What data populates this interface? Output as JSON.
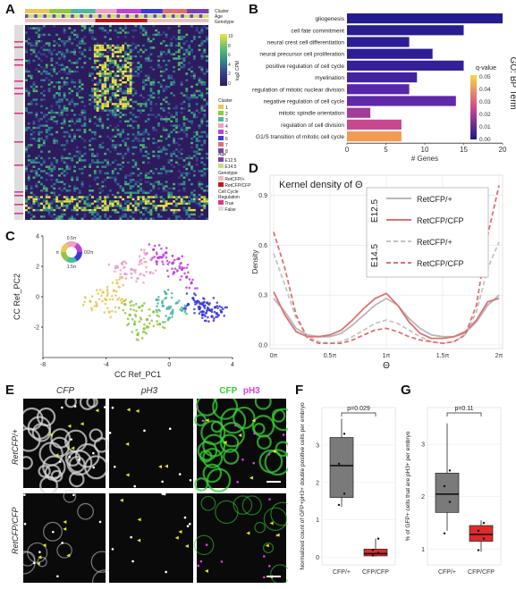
{
  "panels": {
    "A": "A",
    "B": "B",
    "C": "C",
    "D": "D",
    "E": "E",
    "F": "F",
    "G": "G"
  },
  "panel_a": {
    "top_legends": [
      "Cluster",
      "Age",
      "Genotype"
    ],
    "colorbar_title": "log2 CPM",
    "colorbar_ticks": [
      "10",
      "8",
      "6",
      "4",
      "2",
      "0"
    ],
    "cluster_legend_title": "Cluster",
    "cluster_items": [
      "1",
      "2",
      "3",
      "4",
      "5",
      "6",
      "7",
      "8"
    ],
    "age_legend_title": "Age",
    "age_items": [
      "E12.5",
      "E14.5"
    ],
    "genotype_legend_title": "Genotype",
    "genotype_items": [
      "RetCFP/+",
      "RetCFP/CFP"
    ],
    "cellcycle_legend_title": "Cell Cycle Regulation",
    "cellcycle_items": [
      "True",
      "False"
    ],
    "colors": {
      "heatmap_low": "#2d1b5e",
      "heatmap_high": "#f0e442",
      "pink_marker": "#e0368c"
    }
  },
  "chart_data": [
    {
      "id": "B",
      "type": "bar",
      "orientation": "horizontal",
      "categories": [
        "gliogenesis",
        "cell fate commitment",
        "neural crest cell differentiation",
        "neural precursor cell proliferation",
        "positive regulation of cell cycle",
        "myelination",
        "regulation of mitotic nuclear division",
        "negative regulation of cell cycle",
        "mitotic spindle orientation",
        "regulation of cell division",
        "G1/S transition of mitotic cell cycle"
      ],
      "values": [
        20,
        15,
        8,
        11,
        15,
        9,
        8,
        14,
        3,
        7,
        7
      ],
      "qvalues": [
        0.002,
        0.003,
        0.004,
        0.004,
        0.005,
        0.008,
        0.012,
        0.013,
        0.02,
        0.024,
        0.042
      ],
      "xlabel": "# Genes",
      "ylabel": "GO: BP Term",
      "xlim": [
        0,
        20
      ],
      "xticks": [
        "0",
        "5",
        "10",
        "15",
        "20"
      ],
      "legend_title": "q-value",
      "legend_ticks": [
        "0.05",
        "0.04",
        "0.03",
        "0.02",
        "0.01",
        "0.00"
      ],
      "colors": {
        "q_low": "#1a1a8c",
        "q_high": "#f9d83c",
        "q_mid": "#d04a8f"
      }
    },
    {
      "id": "C",
      "type": "scatter",
      "xlabel": "CC Ref_PC1",
      "ylabel": "CC Ref_PC2",
      "xlim": [
        -8,
        4
      ],
      "ylim": [
        -4,
        4
      ],
      "xticks": [
        "-8",
        "-4",
        "0",
        "4"
      ],
      "yticks": [
        "4",
        "2",
        "0",
        "-2"
      ],
      "wheel_labels": [
        "0.5π",
        "π",
        "0/2π",
        "1.5π"
      ],
      "series": [
        {
          "color": "#3a3ad8",
          "points": [
            [
              1.8,
              -0.3
            ],
            [
              2.2,
              -0.6
            ],
            [
              2.6,
              -0.9
            ],
            [
              3.0,
              -1.1
            ],
            [
              1.5,
              -0.1
            ],
            [
              2.4,
              -0.4
            ],
            [
              2.9,
              -0.7
            ],
            [
              1.9,
              -0.8
            ],
            [
              3.3,
              -1.0
            ],
            [
              2.1,
              -1.2
            ],
            [
              1.2,
              -0.5
            ],
            [
              2.7,
              -1.3
            ]
          ]
        },
        {
          "color": "#c040d8",
          "points": [
            [
              -0.5,
              2.6
            ],
            [
              0.2,
              2.2
            ],
            [
              0.8,
              1.8
            ],
            [
              -1.0,
              3.1
            ],
            [
              0.6,
              2.5
            ],
            [
              1.1,
              1.3
            ],
            [
              -0.2,
              2.9
            ],
            [
              1.4,
              0.9
            ],
            [
              0.3,
              1.6
            ],
            [
              -0.8,
              2.3
            ]
          ]
        },
        {
          "color": "#f0a0c8",
          "points": [
            [
              -3.0,
              2.2
            ],
            [
              -2.4,
              1.8
            ],
            [
              -1.8,
              2.4
            ],
            [
              -2.0,
              1.2
            ],
            [
              -1.2,
              1.6
            ],
            [
              -2.8,
              1.5
            ],
            [
              -1.5,
              2.8
            ],
            [
              -3.4,
              1.9
            ]
          ]
        },
        {
          "color": "#e8c85a",
          "points": [
            [
              -4.6,
              -0.6
            ],
            [
              -4.0,
              -0.2
            ],
            [
              -3.5,
              0.4
            ],
            [
              -4.2,
              0.3
            ],
            [
              -3.0,
              -0.4
            ],
            [
              -3.8,
              -1.0
            ],
            [
              -5.0,
              -0.3
            ],
            [
              -3.3,
              0.9
            ]
          ]
        },
        {
          "color": "#8ec840",
          "points": [
            [
              -2.5,
              -1.2
            ],
            [
              -1.9,
              -0.7
            ],
            [
              -1.4,
              -1.5
            ],
            [
              -2.2,
              -1.8
            ],
            [
              -1.0,
              -1.0
            ],
            [
              -2.8,
              -0.5
            ],
            [
              -1.6,
              -2.1
            ],
            [
              -0.6,
              -1.8
            ],
            [
              -2.0,
              -2.5
            ]
          ]
        },
        {
          "color": "#50b8a0",
          "points": [
            [
              -0.4,
              -0.6
            ],
            [
              0.2,
              -1.0
            ],
            [
              -0.8,
              -0.2
            ],
            [
              0.5,
              -0.4
            ],
            [
              0.0,
              -1.4
            ],
            [
              -0.2,
              0.2
            ],
            [
              0.8,
              -0.9
            ]
          ]
        }
      ]
    },
    {
      "id": "D",
      "type": "line",
      "title": "Kernel density of Θ",
      "xlabel": "Θ",
      "ylabel": "Density",
      "xticks": [
        "0π",
        "0.5π",
        "1π",
        "1.5π",
        "2π"
      ],
      "yticks": [
        "0.9",
        "0.6",
        "0.3",
        "0.0"
      ],
      "xlim": [
        0,
        2
      ],
      "ylim": [
        0,
        1.0
      ],
      "legend_groups": [
        "E12.5",
        "E14.5"
      ],
      "series": [
        {
          "name": "RetCFP/+",
          "group": "E12.5",
          "color": "#b8b8b8",
          "dash": false,
          "x": [
            0,
            0.1,
            0.2,
            0.3,
            0.4,
            0.5,
            0.6,
            0.7,
            0.8,
            0.9,
            1.0,
            1.1,
            1.2,
            1.3,
            1.4,
            1.5,
            1.6,
            1.7,
            1.8,
            1.9,
            2.0
          ],
          "y": [
            0.28,
            0.2,
            0.1,
            0.06,
            0.05,
            0.05,
            0.07,
            0.12,
            0.18,
            0.24,
            0.28,
            0.24,
            0.16,
            0.1,
            0.06,
            0.05,
            0.05,
            0.07,
            0.14,
            0.24,
            0.3
          ]
        },
        {
          "name": "RetCFP/CFP",
          "group": "E12.5",
          "color": "#e07070",
          "dash": false,
          "x": [
            0,
            0.1,
            0.2,
            0.3,
            0.4,
            0.5,
            0.6,
            0.7,
            0.8,
            0.9,
            1.0,
            1.1,
            1.2,
            1.3,
            1.4,
            1.5,
            1.6,
            1.7,
            1.8,
            1.9,
            2.0
          ],
          "y": [
            0.32,
            0.18,
            0.08,
            0.05,
            0.05,
            0.06,
            0.09,
            0.15,
            0.22,
            0.28,
            0.31,
            0.24,
            0.14,
            0.07,
            0.04,
            0.04,
            0.05,
            0.08,
            0.15,
            0.26,
            0.28
          ]
        },
        {
          "name": "RetCFP/+",
          "group": "E14.5",
          "color": "#c4c4c4",
          "dash": true,
          "x": [
            0,
            0.1,
            0.2,
            0.3,
            0.4,
            0.5,
            0.6,
            0.7,
            0.8,
            0.9,
            1.0,
            1.1,
            1.2,
            1.3,
            1.4,
            1.5,
            1.6,
            1.7,
            1.8,
            1.9,
            2.0
          ],
          "y": [
            0.55,
            0.36,
            0.16,
            0.05,
            0.02,
            0.01,
            0.02,
            0.05,
            0.09,
            0.13,
            0.15,
            0.13,
            0.09,
            0.05,
            0.02,
            0.01,
            0.02,
            0.06,
            0.2,
            0.46,
            0.62
          ]
        },
        {
          "name": "RetCFP/CFP",
          "group": "E14.5",
          "color": "#e07070",
          "dash": true,
          "x": [
            0,
            0.1,
            0.2,
            0.3,
            0.4,
            0.5,
            0.6,
            0.7,
            0.8,
            0.9,
            1.0,
            1.1,
            1.2,
            1.3,
            1.4,
            1.5,
            1.6,
            1.7,
            1.8,
            1.9,
            2.0
          ],
          "y": [
            0.68,
            0.46,
            0.18,
            0.04,
            0.01,
            0.01,
            0.01,
            0.03,
            0.06,
            0.09,
            0.1,
            0.08,
            0.05,
            0.03,
            0.02,
            0.01,
            0.02,
            0.06,
            0.24,
            0.66,
            0.96
          ]
        }
      ]
    },
    {
      "id": "F",
      "type": "box",
      "ylabel": "Normalized count of GFP+pH3+ double positive cells per embryo",
      "categories": [
        "CFP/+",
        "CFP/CFP"
      ],
      "yticks": [
        "3",
        "2",
        "1",
        "0"
      ],
      "ylim": [
        -0.2,
        4.0
      ],
      "annotation": "p=0.029",
      "boxes": [
        {
          "q1": 1.6,
          "median": 2.45,
          "q3": 3.2,
          "lo": 1.35,
          "hi": 3.7,
          "points": [
            1.4,
            1.7,
            2.5,
            3.3
          ],
          "color": "#7a7a7a"
        },
        {
          "q1": 0.04,
          "median": 0.1,
          "q3": 0.22,
          "lo": 0.02,
          "hi": 0.5,
          "points": [
            0.05,
            0.12,
            0.2,
            0.5
          ],
          "color": "#e02a2a"
        }
      ]
    },
    {
      "id": "G",
      "type": "box",
      "ylabel": "% of GFP+ cells that are pH3+ per embryo",
      "categories": [
        "CFP/+",
        "CFP/CFP"
      ],
      "yticks": [
        "3",
        "2",
        "1"
      ],
      "ylim": [
        0.7,
        3.7
      ],
      "annotation": "p=0.11",
      "boxes": [
        {
          "q1": 1.7,
          "median": 2.05,
          "q3": 2.45,
          "lo": 1.35,
          "hi": 3.4,
          "points": [
            1.3,
            1.9,
            2.2,
            2.5
          ],
          "color": "#7a7a7a"
        },
        {
          "q1": 1.15,
          "median": 1.28,
          "q3": 1.45,
          "lo": 0.95,
          "hi": 1.55,
          "points": [
            0.98,
            1.2,
            1.35,
            1.5
          ],
          "color": "#e02a2a"
        }
      ]
    }
  ],
  "panel_e": {
    "column_titles": [
      "CFP",
      "pH3"
    ],
    "merge_title_cfp": "CFP",
    "merge_title_ph3": "pH3",
    "row_labels": [
      "RetCFP/+",
      "RetCFP/CFP"
    ],
    "colors": {
      "cfp_green": "#35d035",
      "ph3_magenta": "#e040e0",
      "arrow_yellow": "#e8e820"
    }
  }
}
